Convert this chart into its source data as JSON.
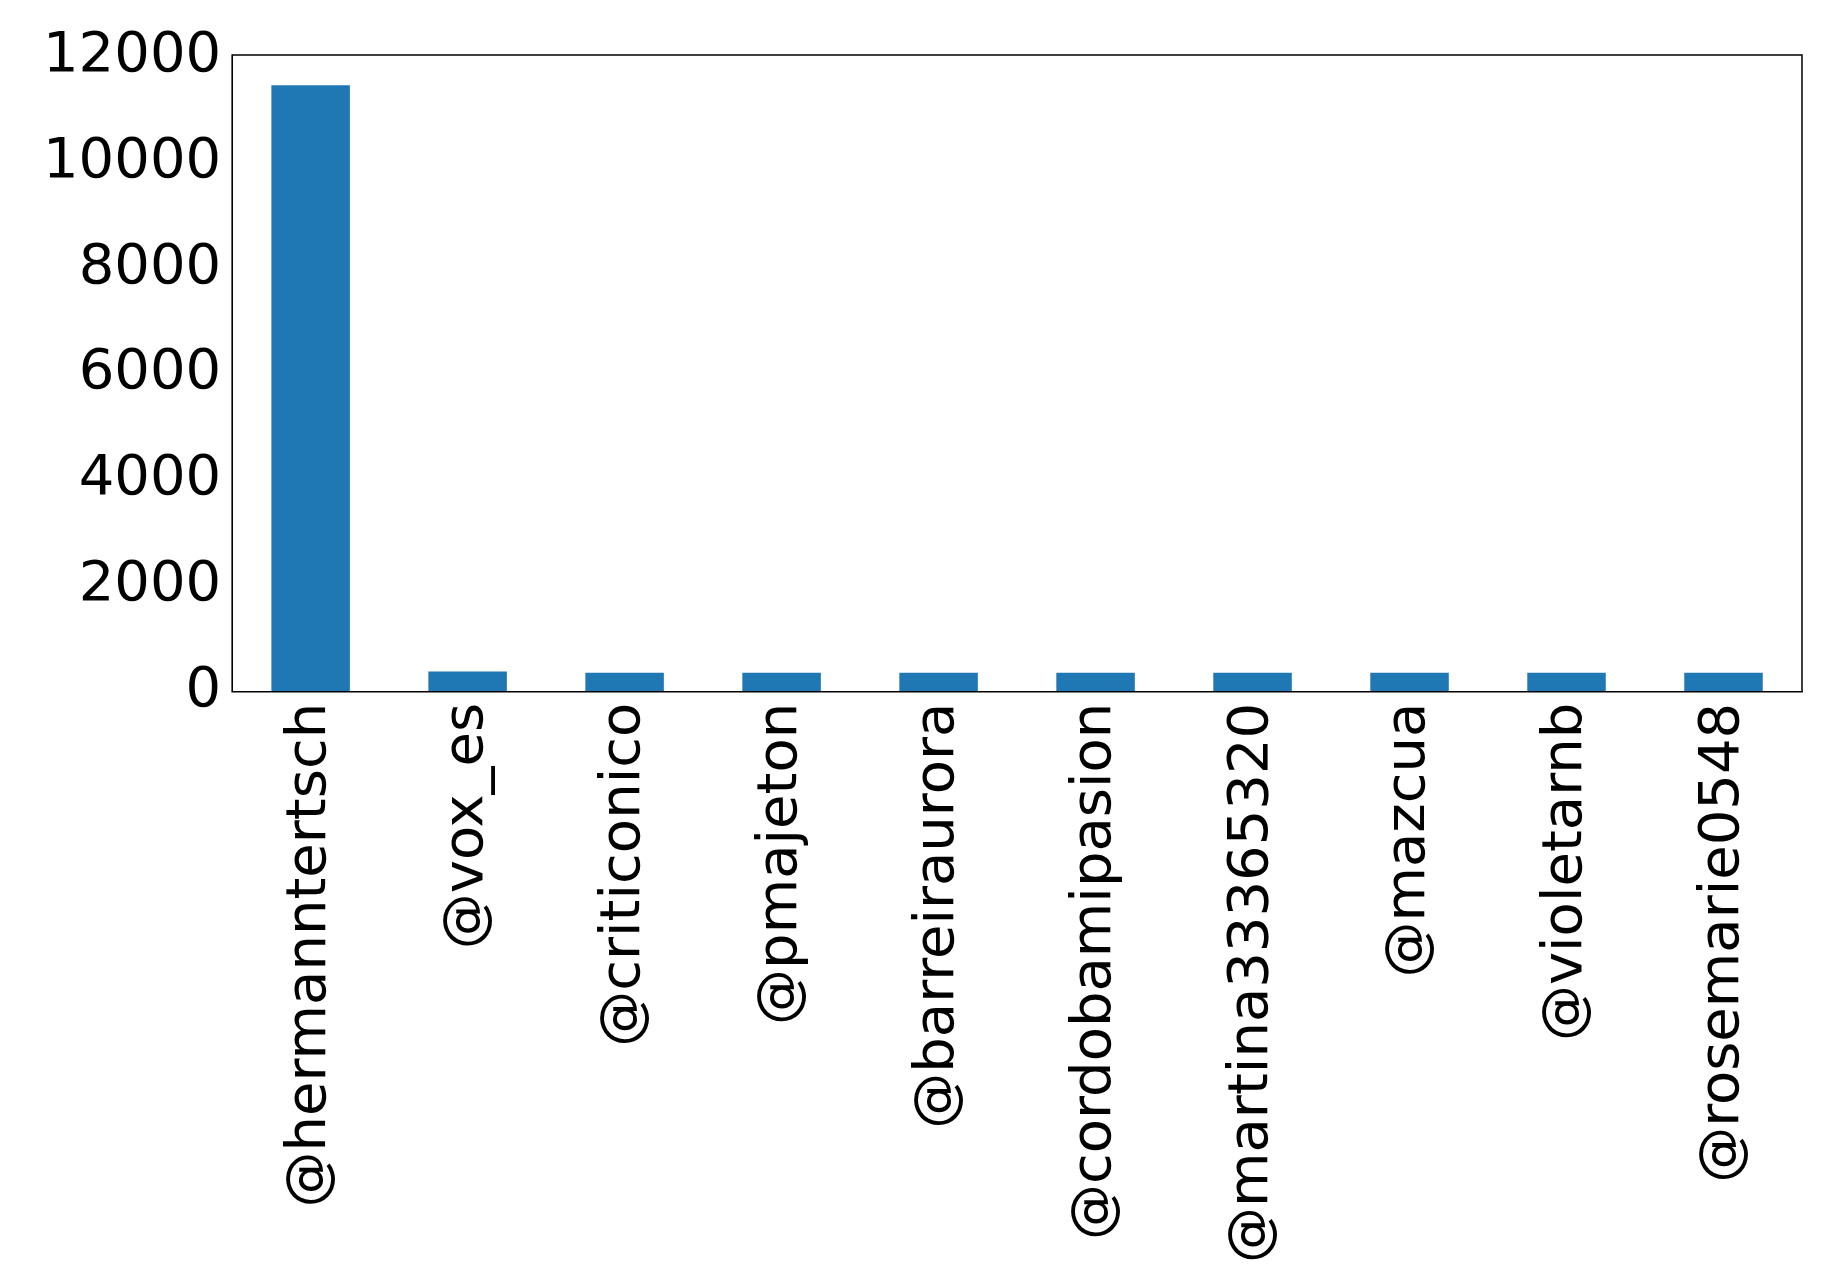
{
  "chart_data": {
    "type": "bar",
    "categories": [
      "@hermanntertsch",
      "@vox_es",
      "@criticonico",
      "@pmajeton",
      "@barreiraurora",
      "@cordobamipasion",
      "@martina33365320",
      "@mazcua",
      "@violetarnb",
      "@rosemarie0548"
    ],
    "values": [
      11450,
      380,
      360,
      360,
      360,
      360,
      360,
      360,
      360,
      360
    ],
    "color": "#1f77b4",
    "ylim": [
      0,
      12020
    ],
    "yticks": [
      0,
      2000,
      4000,
      6000,
      8000,
      10000,
      12000
    ],
    "grid": false,
    "legend": false
  }
}
